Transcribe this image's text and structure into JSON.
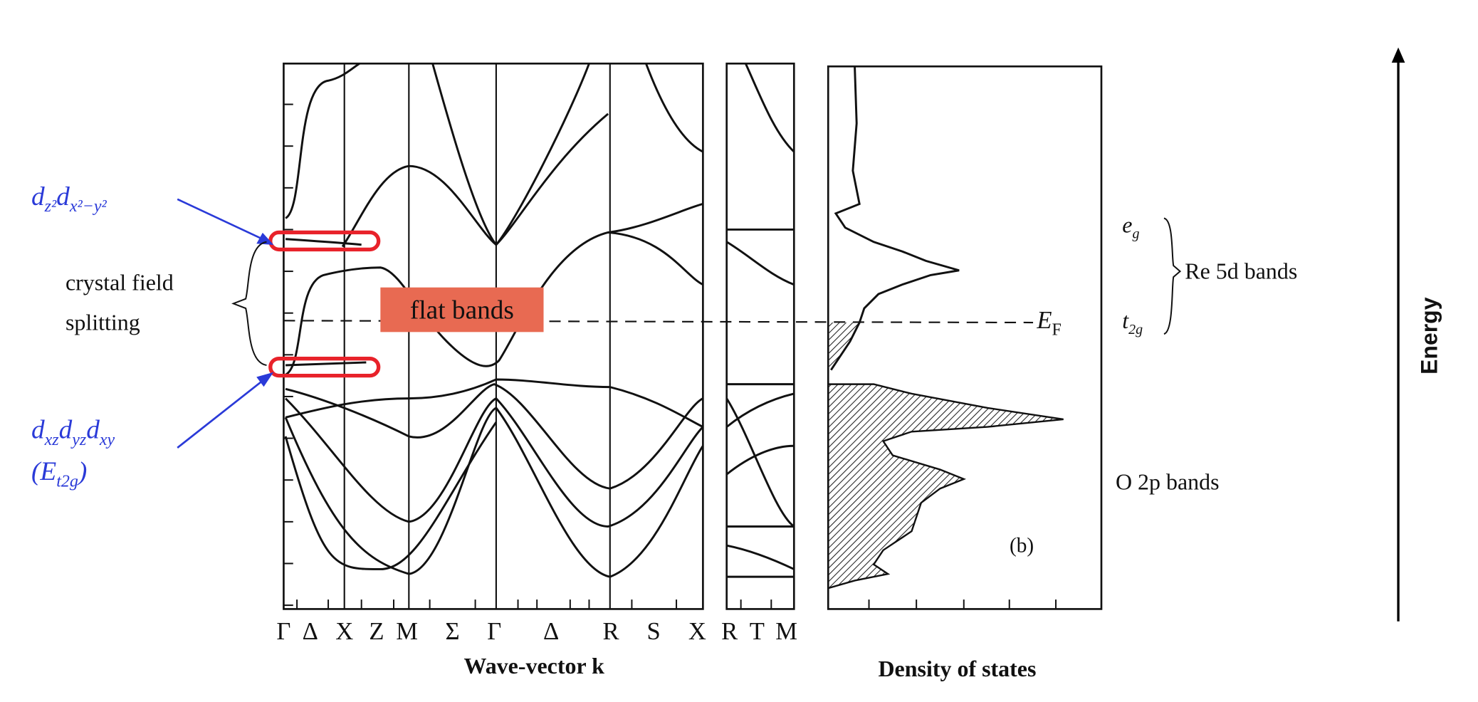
{
  "annotations": {
    "eg_orbitals": [
      "d",
      "z²",
      "d",
      "x²−y²"
    ],
    "crystal_field": [
      "crystal field",
      "splitting"
    ],
    "t2g_orbitals": [
      "d",
      "xz",
      "d",
      "yz",
      "d",
      "xy"
    ],
    "t2g_energy": [
      "(E",
      "t2g",
      ")"
    ],
    "flat_bands": "flat bands"
  },
  "band_panel": {
    "k_labels": [
      "Γ",
      "Δ",
      "X",
      "Z",
      "M",
      "Σ",
      "Γ",
      "Δ",
      "R",
      "S",
      "X",
      "R",
      "T",
      "M"
    ],
    "x_label": "Wave-vector k"
  },
  "dos_panel": {
    "x_label": "Density of states",
    "panel_label": "(b)",
    "fermi_level": [
      "E",
      "F"
    ],
    "eg": [
      "e",
      "g"
    ],
    "t2g": [
      "t",
      "2g"
    ],
    "re_bands": "Re 5d bands",
    "o_bands": "O 2p bands"
  },
  "energy_axis": "Energy"
}
